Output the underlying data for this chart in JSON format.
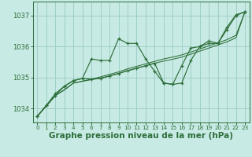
{
  "background_color": "#c8eae4",
  "grid_color": "#9ecfc7",
  "line_color": "#2d6e3a",
  "xlabel": "Graphe pression niveau de la mer (hPa)",
  "xlabel_fontsize": 7.5,
  "yticks": [
    1034,
    1035,
    1036,
    1037
  ],
  "xticks": [
    0,
    1,
    2,
    3,
    4,
    5,
    6,
    7,
    8,
    9,
    10,
    11,
    12,
    13,
    14,
    15,
    16,
    17,
    18,
    19,
    20,
    21,
    22,
    23
  ],
  "xlim": [
    -0.5,
    23.5
  ],
  "ylim": [
    1033.55,
    1037.45
  ],
  "series_wavy1": [
    1033.75,
    1034.1,
    1034.48,
    1034.72,
    1034.9,
    1034.97,
    1035.6,
    1035.55,
    1035.55,
    1036.25,
    1036.1,
    1036.1,
    1035.6,
    1035.2,
    1034.82,
    1034.78,
    1034.82,
    1035.55,
    1036.0,
    1036.18,
    1036.1,
    1036.62,
    1037.02,
    1037.12
  ],
  "series_straight1": [
    1033.75,
    1034.08,
    1034.42,
    1034.6,
    1034.82,
    1034.88,
    1034.95,
    1035.02,
    1035.1,
    1035.18,
    1035.28,
    1035.36,
    1035.44,
    1035.52,
    1035.6,
    1035.66,
    1035.73,
    1035.82,
    1035.92,
    1036.02,
    1036.12,
    1036.22,
    1036.36,
    1037.12
  ],
  "series_straight2": [
    1033.75,
    1034.08,
    1034.42,
    1034.6,
    1034.82,
    1034.88,
    1034.93,
    1034.98,
    1035.05,
    1035.13,
    1035.22,
    1035.3,
    1035.38,
    1035.46,
    1035.53,
    1035.59,
    1035.66,
    1035.75,
    1035.85,
    1035.95,
    1036.05,
    1036.15,
    1036.28,
    1037.12
  ],
  "series_wavy2": [
    1033.75,
    1034.1,
    1034.42,
    1034.72,
    1034.9,
    1034.97,
    1034.95,
    1034.97,
    1035.05,
    1035.13,
    1035.22,
    1035.3,
    1035.38,
    1035.46,
    1034.82,
    1034.78,
    1035.38,
    1035.95,
    1036.0,
    1036.1,
    1036.1,
    1036.55,
    1037.0,
    1037.12
  ]
}
